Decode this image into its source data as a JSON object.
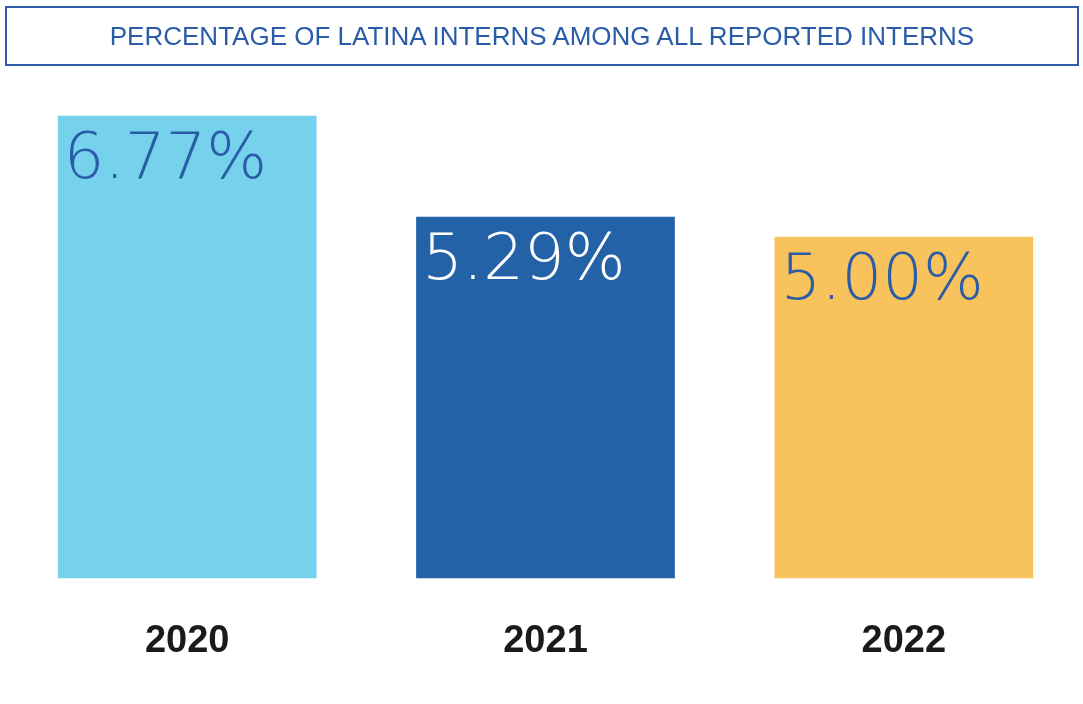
{
  "chart_data": {
    "type": "bar",
    "title": "PERCENTAGE OF LATINA INTERNS AMONG ALL REPORTED INTERNS",
    "categories": [
      "2020",
      "2021",
      "2022"
    ],
    "values": [
      6.77,
      5.29,
      5.0
    ],
    "colors": [
      "#75d1ec",
      "#2462a8",
      "#f8c25c"
    ],
    "value_labels": [
      "6.77%",
      "5.29%",
      "5.00%"
    ],
    "relative": false,
    "grid": false,
    "legend": false
  }
}
